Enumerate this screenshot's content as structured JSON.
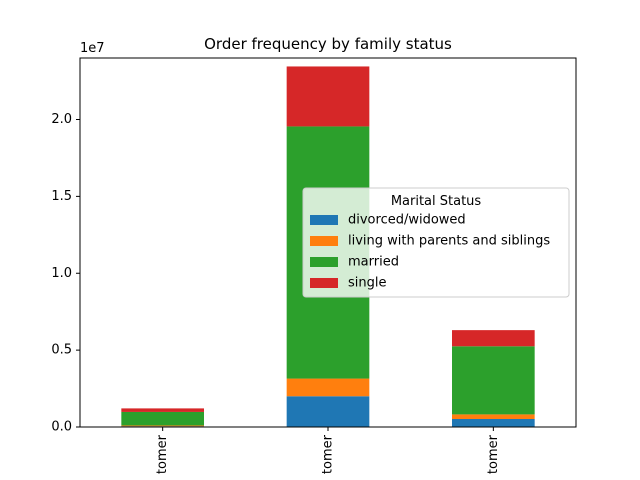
{
  "chart_data": {
    "type": "bar",
    "stacked": true,
    "title": "Order frequency by family status",
    "xlabel": "",
    "ylabel": "",
    "categories": [
      "tomer",
      "tomer",
      "tomer"
    ],
    "series": [
      {
        "name": "divorced/widowed",
        "color": "#1f77b4",
        "values": [
          50000,
          2000000,
          520000
        ]
      },
      {
        "name": "living with parents and siblings",
        "color": "#ff7f0e",
        "values": [
          50000,
          1150000,
          300000
        ]
      },
      {
        "name": "married",
        "color": "#2ca02c",
        "values": [
          880000,
          16400000,
          4430000
        ]
      },
      {
        "name": "single",
        "color": "#d62728",
        "values": [
          230000,
          3900000,
          1050000
        ]
      }
    ],
    "ylim": [
      0,
      24000000
    ],
    "yticks": [
      0,
      5000000,
      10000000,
      15000000,
      20000000
    ],
    "ytick_labels": [
      "0.0",
      "0.5",
      "1.0",
      "1.5",
      "2.0"
    ],
    "y_offset_label": "1e7",
    "legend": {
      "title": "Marital Status",
      "position": "center-right"
    },
    "grid": false
  }
}
